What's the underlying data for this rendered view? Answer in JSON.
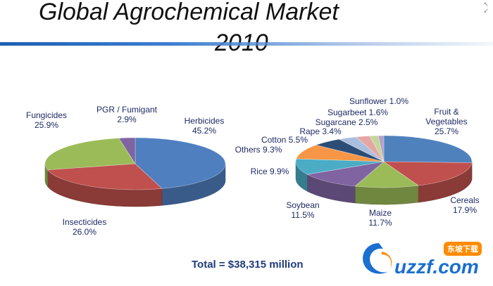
{
  "title": {
    "line1": "Global Agrochemical Market",
    "line2": "2010"
  },
  "total_label": "Total = $38,315 million",
  "watermark": {
    "text": "uzzf.com",
    "tag": "东坡下载"
  },
  "chart_data": [
    {
      "type": "pie",
      "subtitle": "",
      "slices": [
        {
          "label": "Herbicides",
          "value": 45.2,
          "value_text": "45.2%",
          "color": "#4f7fbf"
        },
        {
          "label": "Insecticides",
          "value": 26.0,
          "value_text": "26.0%",
          "color": "#c0504d"
        },
        {
          "label": "Fungicides",
          "value": 25.9,
          "value_text": "25.9%",
          "color": "#9bbb59"
        },
        {
          "label": "PGR / Fumigant",
          "value": 2.9,
          "value_text": "2.9%",
          "color": "#8064a2"
        }
      ]
    },
    {
      "type": "pie",
      "subtitle": "",
      "slices": [
        {
          "label": "Fruit & Vegetables",
          "value": 25.7,
          "value_text": "25.7%",
          "color": "#4f81bd"
        },
        {
          "label": "Cereals",
          "value": 17.9,
          "value_text": "17.9%",
          "color": "#c0504d"
        },
        {
          "label": "Maize",
          "value": 11.7,
          "value_text": "11.7%",
          "color": "#9bbb59"
        },
        {
          "label": "Soybean",
          "value": 11.5,
          "value_text": "11.5%",
          "color": "#8064a2"
        },
        {
          "label": "Rice",
          "value": 9.9,
          "value_text": "9.9%",
          "color": "#4bacc6"
        },
        {
          "label": "Others",
          "value": 9.3,
          "value_text": "9.3%",
          "color": "#f79646"
        },
        {
          "label": "Cotton",
          "value": 5.5,
          "value_text": "5.5%",
          "color": "#2c4d75"
        },
        {
          "label": "Rape",
          "value": 3.4,
          "value_text": "3.4%",
          "color": "#a9bfe0"
        },
        {
          "label": "Sugarcane",
          "value": 2.5,
          "value_text": "2.5%",
          "color": "#e6a6a4"
        },
        {
          "label": "Sugarbeet",
          "value": 1.6,
          "value_text": "1.6%",
          "color": "#c3d69b"
        },
        {
          "label": "Sunflower",
          "value": 1.0,
          "value_text": "1.0%",
          "color": "#b3a2c7"
        }
      ]
    }
  ]
}
